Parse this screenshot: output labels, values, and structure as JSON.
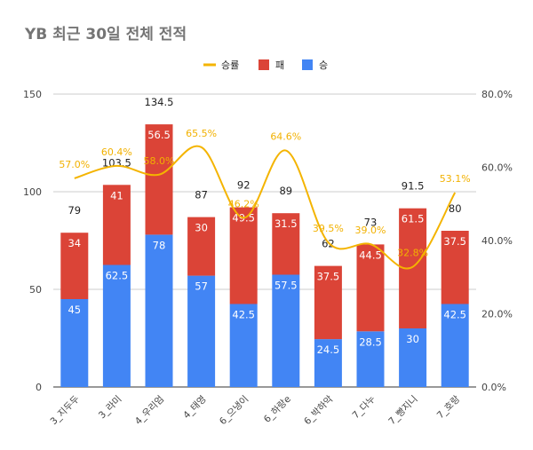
{
  "chart_data": {
    "type": "bar",
    "stacked": true,
    "title": "YB 최근 30일 전체 전적",
    "categories": [
      "3_지두두",
      "3_라미",
      "4_우리엄",
      "4_태영",
      "6_으냉이",
      "6_하랑e",
      "6_박하악",
      "7_다누",
      "7_빵지니",
      "7_호랑"
    ],
    "series": [
      {
        "name": "승",
        "color": "#4285f4",
        "values": [
          45,
          62.5,
          78,
          57,
          42.5,
          57.5,
          24.5,
          28.5,
          30,
          42.5
        ],
        "labels": [
          "45",
          "62.5",
          "78",
          "57",
          "42.5",
          "57.5",
          "24.5",
          "28.5",
          "30",
          "42.5"
        ]
      },
      {
        "name": "패",
        "color": "#db4437",
        "values": [
          34,
          41,
          56.5,
          30,
          49.5,
          31.5,
          37.5,
          44.5,
          61.5,
          37.5
        ],
        "labels": [
          "34",
          "41",
          "56.5",
          "30",
          "49.5",
          "31.5",
          "37.5",
          "44.5",
          "61.5",
          "37.5"
        ]
      }
    ],
    "totals": [
      79,
      103.5,
      134.5,
      87,
      92,
      89,
      62,
      73,
      91.5,
      80
    ],
    "total_labels": [
      "79",
      "103.5",
      "134.5",
      "87",
      "92",
      "89",
      "62",
      "73",
      "91.5",
      "80"
    ],
    "line": {
      "name": "승률",
      "color": "#f4b400",
      "axis": "right",
      "values": [
        57.0,
        60.4,
        58.0,
        65.5,
        46.2,
        64.6,
        39.5,
        39.0,
        32.8,
        53.1
      ],
      "labels": [
        "57.0%",
        "60.4%",
        "58.0%",
        "65.5%",
        "46.2%",
        "64.6%",
        "39.5%",
        "39.0%",
        "32.8%",
        "53.1%"
      ]
    },
    "y_left": {
      "ylim": [
        0,
        150
      ],
      "ticks": [
        0,
        50,
        100,
        150
      ],
      "tick_labels": [
        "0",
        "50",
        "100",
        "150"
      ]
    },
    "y_right": {
      "ylim": [
        0,
        80
      ],
      "ticks": [
        0,
        20,
        40,
        60,
        80
      ],
      "tick_labels": [
        "0.0%",
        "20.0%",
        "40.0%",
        "60.0%",
        "80.0%"
      ]
    },
    "legend": {
      "placement": "top-center",
      "entries": [
        {
          "name": "승률",
          "color": "#f4b400",
          "shape": "line"
        },
        {
          "name": "패",
          "color": "#db4437",
          "shape": "square"
        },
        {
          "name": "승",
          "color": "#4285f4",
          "shape": "square"
        }
      ]
    },
    "grid": true
  }
}
